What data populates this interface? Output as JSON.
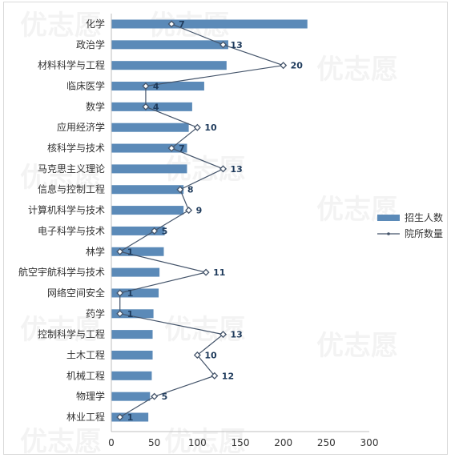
{
  "chart_data": {
    "type": "bar",
    "orientation": "horizontal",
    "categories": [
      "化学",
      "政治学",
      "材料科学与工程",
      "临床医学",
      "数学",
      "应用经济学",
      "核科学与技术",
      "马克思主义理论",
      "信息与控制工程",
      "计算机科学与技术",
      "电子科学与技术",
      "林学",
      "航空宇航科学与技术",
      "网络空间安全",
      "药学",
      "控制科学与工程",
      "土木工程",
      "机械工程",
      "物理学",
      "林业工程"
    ],
    "series": [
      {
        "name": "招生人数",
        "type": "bar",
        "color": "#5b8ab8",
        "values": [
          228,
          136,
          134,
          108,
          94,
          90,
          88,
          88,
          84,
          84,
          62,
          61,
          56,
          55,
          49,
          48,
          48,
          47,
          45,
          43
        ]
      },
      {
        "name": "院所数量",
        "type": "line",
        "color": "#44546a",
        "values": [
          7,
          13,
          20,
          4,
          4,
          10,
          7,
          13,
          8,
          9,
          5,
          1,
          11,
          1,
          1,
          13,
          10,
          12,
          5,
          1
        ]
      }
    ],
    "xlim": [
      0,
      300
    ],
    "xticks": [
      0,
      50,
      100,
      150,
      200,
      250,
      300
    ],
    "line_scale_note": "",
    "legend_position": "right",
    "grid": false
  },
  "watermark_text": "优志愿"
}
